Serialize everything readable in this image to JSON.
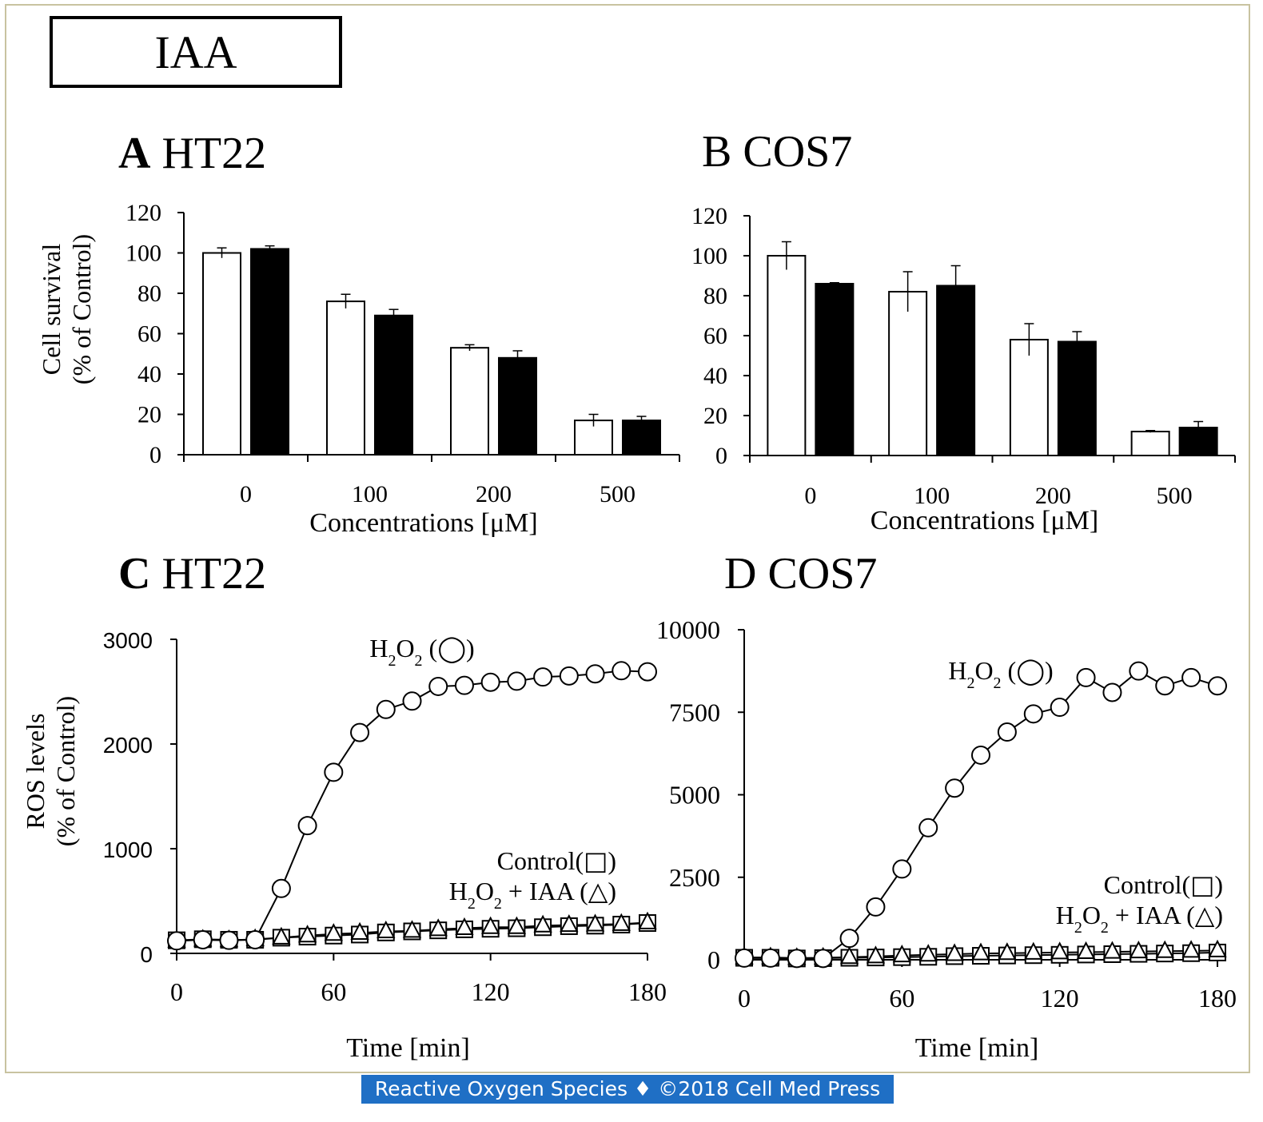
{
  "figure_title": "IAA",
  "footer_text": "Reactive Oxygen Species ♦ ©2018 Cell Med Press",
  "colors": {
    "filled": "#000000",
    "open": "#ffffff",
    "border": "#c8c3a0",
    "footer_bg": "#1f6fc5"
  },
  "panels": [
    {
      "letter": "A",
      "name": "HT22"
    },
    {
      "letter": "B",
      "name": "COS7"
    },
    {
      "letter": "C",
      "name": "HT22"
    },
    {
      "letter": "D",
      "name": "COS7"
    }
  ],
  "chart_data": [
    {
      "id": "A",
      "type": "bar",
      "title": "A HT22",
      "xlabel": "Concentrations [μM]",
      "ylabel": [
        "Cell survival",
        "(% of Control)"
      ],
      "categories": [
        "0",
        "100",
        "200",
        "500"
      ],
      "ylim": [
        0,
        120
      ],
      "yticks": [
        0,
        20,
        40,
        60,
        80,
        100,
        120
      ],
      "series": [
        {
          "fill": "open",
          "values": [
            100,
            76,
            53,
            17
          ],
          "errors": [
            2.5,
            3.5,
            1.5,
            3
          ]
        },
        {
          "fill": "filled",
          "values": [
            102,
            69,
            48,
            17
          ],
          "errors": [
            1.5,
            3,
            3.5,
            2
          ]
        }
      ]
    },
    {
      "id": "B",
      "type": "bar",
      "title": "B COS7",
      "xlabel": "Concentrations [μM]",
      "ylabel": [],
      "categories": [
        "0",
        "100",
        "200",
        "500"
      ],
      "ylim": [
        0,
        120
      ],
      "yticks": [
        0,
        20,
        40,
        60,
        80,
        100,
        120
      ],
      "series": [
        {
          "fill": "open",
          "values": [
            100,
            82,
            58,
            12
          ],
          "errors": [
            7,
            10,
            8,
            0.5
          ]
        },
        {
          "fill": "filled",
          "values": [
            86,
            85,
            57,
            14
          ],
          "errors": [
            0.5,
            10,
            5,
            3
          ]
        }
      ]
    },
    {
      "id": "C",
      "type": "line",
      "title": "C HT22",
      "xlabel": "Time [min]",
      "ylabel": [
        "ROS levels",
        "(% of Control)"
      ],
      "xlim": [
        0,
        180
      ],
      "xticks": [
        0,
        60,
        120,
        180
      ],
      "ylim": [
        0,
        3000
      ],
      "yticks": [
        0,
        1000,
        2000,
        3000
      ],
      "x": [
        0,
        10,
        20,
        30,
        40,
        50,
        60,
        70,
        80,
        90,
        100,
        110,
        120,
        130,
        140,
        150,
        160,
        170,
        180
      ],
      "series": [
        {
          "name": "H2O2 (◯)",
          "marker": "circle",
          "values": [
            120,
            130,
            125,
            130,
            620,
            1220,
            1730,
            2110,
            2330,
            2410,
            2550,
            2560,
            2590,
            2600,
            2640,
            2650,
            2670,
            2700,
            2690
          ]
        },
        {
          "name": "Control(□)",
          "marker": "square",
          "values": [
            125,
            135,
            130,
            130,
            150,
            160,
            170,
            180,
            200,
            210,
            220,
            230,
            235,
            240,
            250,
            260,
            265,
            275,
            290
          ]
        },
        {
          "name": "H2O2 + IAA (△)",
          "marker": "triangle",
          "values": [
            120,
            130,
            125,
            135,
            150,
            170,
            185,
            195,
            210,
            215,
            230,
            240,
            250,
            250,
            265,
            270,
            275,
            280,
            295
          ]
        }
      ],
      "annotations": [
        {
          "series": "H2O2 (◯)",
          "lines": [
            [
              {
                "t": "H"
              },
              {
                "t": "2",
                "sub": true
              },
              {
                "t": "O"
              },
              {
                "t": "2",
                "sub": true
              },
              {
                "t": " ("
              },
              {
                "t": "◯",
                "glyph": true
              },
              {
                "t": ")"
              }
            ]
          ]
        },
        {
          "series": "Control / H2O2 + IAA",
          "lines": [
            [
              {
                "t": "Control("
              },
              {
                "t": "□",
                "glyph": true
              },
              {
                "t": ")"
              }
            ],
            [
              {
                "t": "H"
              },
              {
                "t": "2",
                "sub": true
              },
              {
                "t": "O"
              },
              {
                "t": "2",
                "sub": true
              },
              {
                "t": " + IAA ("
              },
              {
                "t": "△",
                "glyph": true
              },
              {
                "t": ")"
              }
            ]
          ]
        }
      ]
    },
    {
      "id": "D",
      "type": "line",
      "title": "D COS7",
      "xlabel": "Time [min]",
      "ylabel": [],
      "xlim": [
        0,
        180
      ],
      "xticks": [
        0,
        60,
        120,
        180
      ],
      "ylim": [
        0,
        10000
      ],
      "yticks": [
        0,
        2500,
        5000,
        7500,
        10000
      ],
      "x": [
        0,
        10,
        20,
        30,
        40,
        50,
        60,
        70,
        80,
        90,
        100,
        110,
        120,
        130,
        140,
        150,
        160,
        170,
        180
      ],
      "series": [
        {
          "name": "H2O2 (◯)",
          "marker": "circle",
          "values": [
            50,
            50,
            40,
            40,
            650,
            1600,
            2750,
            4000,
            5200,
            6200,
            6900,
            7450,
            7650,
            8550,
            8100,
            8750,
            8300,
            8550,
            8300
          ]
        },
        {
          "name": "Control(□)",
          "marker": "square",
          "values": [
            60,
            60,
            40,
            50,
            60,
            70,
            80,
            90,
            110,
            120,
            130,
            140,
            150,
            160,
            170,
            180,
            190,
            200,
            220
          ]
        },
        {
          "name": "H2O2 + IAA (△)",
          "marker": "triangle",
          "values": [
            70,
            70,
            50,
            60,
            80,
            100,
            130,
            150,
            170,
            190,
            200,
            210,
            220,
            230,
            240,
            250,
            260,
            270,
            280
          ]
        }
      ],
      "annotations": [
        {
          "series": "H2O2 (◯)",
          "lines": [
            [
              {
                "t": "H"
              },
              {
                "t": "2",
                "sub": true
              },
              {
                "t": "O"
              },
              {
                "t": "2",
                "sub": true
              },
              {
                "t": " ("
              },
              {
                "t": "◯",
                "glyph": true
              },
              {
                "t": ")"
              }
            ]
          ]
        },
        {
          "series": "Control / H2O2 + IAA",
          "lines": [
            [
              {
                "t": "Control("
              },
              {
                "t": "□",
                "glyph": true
              },
              {
                "t": ")"
              }
            ],
            [
              {
                "t": "H"
              },
              {
                "t": "2",
                "sub": true
              },
              {
                "t": "O"
              },
              {
                "t": "2",
                "sub": true
              },
              {
                "t": " + IAA ("
              },
              {
                "t": "△",
                "glyph": true
              },
              {
                "t": ")"
              }
            ]
          ]
        }
      ]
    }
  ]
}
